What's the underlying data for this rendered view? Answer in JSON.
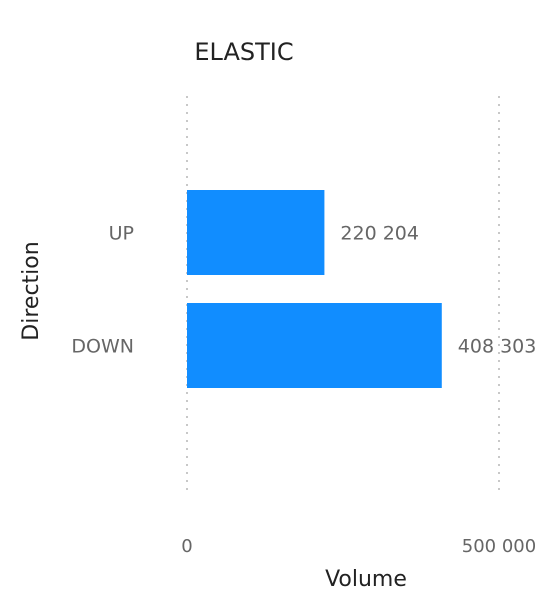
{
  "chart_data": {
    "type": "bar",
    "orientation": "horizontal",
    "title": "ELASTIC",
    "xlabel": "Volume",
    "ylabel": "Direction",
    "categories": [
      "UP",
      "DOWN"
    ],
    "values": [
      220204,
      408303
    ],
    "data_labels": [
      "220 204",
      "408 303"
    ],
    "xlim": [
      0,
      500000
    ],
    "x_ticks": [
      0,
      500000
    ],
    "x_tick_labels": [
      "0",
      "500 000"
    ],
    "grid": "vertical dotted",
    "bar_color": "#118DFF",
    "text_color": "#666666",
    "title_color": "#222222"
  }
}
